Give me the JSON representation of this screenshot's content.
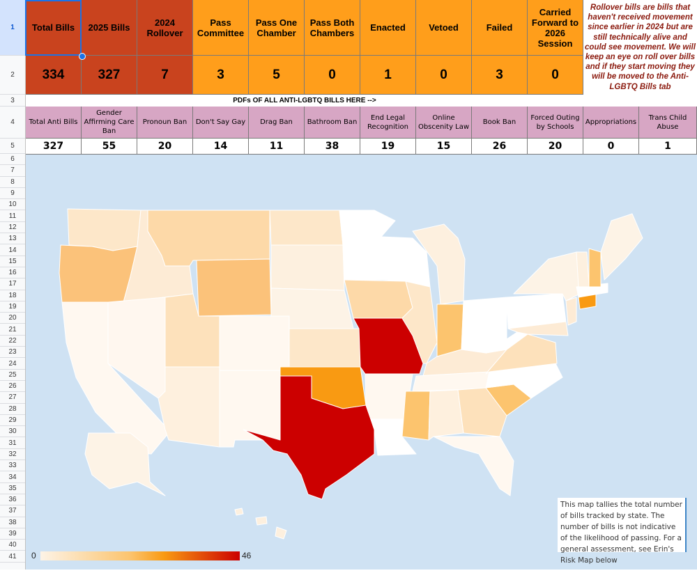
{
  "row_numbers": [
    "1",
    "2",
    "3",
    "4",
    "5",
    "6",
    "7",
    "8",
    "9",
    "10",
    "11",
    "12",
    "13",
    "14",
    "15",
    "16",
    "17",
    "18",
    "19",
    "20",
    "21",
    "22",
    "23",
    "24",
    "25",
    "26",
    "27",
    "28",
    "29",
    "30",
    "31",
    "32",
    "33",
    "34",
    "35",
    "36",
    "37",
    "38",
    "39",
    "40",
    "41"
  ],
  "summary": {
    "headers": [
      "Total Bills",
      "2025 Bills",
      "2024 Rollover",
      "Pass Committee",
      "Pass One Chamber",
      "Pass Both Chambers",
      "Enacted",
      "Vetoed",
      "Failed",
      "Carried Forward to 2026 Session"
    ],
    "values": [
      "334",
      "327",
      "7",
      "3",
      "5",
      "0",
      "1",
      "0",
      "3",
      "0"
    ],
    "note": "Rollover bills are bills that haven't received movement since earlier in 2024 but are still technically alive and could see movement. We will keep an eye on roll over bills and if they start moving they will be moved to the Anti-LGBTQ Bills tab"
  },
  "pdf_link": "PDFs OF ALL ANTI-LGBTQ BILLS HERE -->",
  "categories": {
    "headers": [
      "Total Anti Bills",
      "Gender Affirming Care Ban",
      "Pronoun Ban",
      "Don't Say Gay",
      "Drag Ban",
      "Bathroom Ban",
      "End Legal Recognition",
      "Online Obscenity Law",
      "Book Ban",
      "Forced Outing by Schools",
      "Appropriations",
      "Trans Child Abuse"
    ],
    "values": [
      "327",
      "55",
      "20",
      "14",
      "11",
      "38",
      "19",
      "15",
      "26",
      "20",
      "0",
      "1"
    ]
  },
  "map": {
    "legend_min": "0",
    "legend_max": "46",
    "caption": "This map tallies the total number of bills tracked by state. The number of bills is not indicative of the likelihood of passing. For a general assessment, see Erin's Risk Map below",
    "colors": {
      "ocean": "#cfe2f3",
      "low": "#fdf3e6",
      "mid": "#fcc46e",
      "orange": "#f99a12",
      "high": "#cc0000"
    }
  }
}
